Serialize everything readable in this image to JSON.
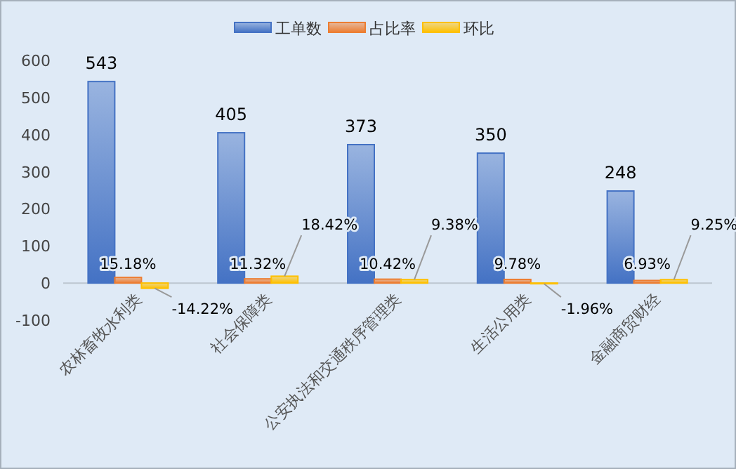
{
  "chart_data": {
    "type": "bar",
    "categories": [
      "农林畜牧水利类",
      "社会保障类",
      "公安执法和交通秩序管理类",
      "生活公用类",
      "金融商贸财经"
    ],
    "series": [
      {
        "name": "工单数",
        "color": "#4472c4",
        "values": [
          543,
          405,
          373,
          350,
          248
        ]
      },
      {
        "name": "占比率",
        "color": "#ed7d31",
        "values": [
          15.18,
          11.32,
          10.42,
          9.78,
          6.93
        ],
        "value_labels": [
          "15.18%",
          "11.32%",
          "10.42%",
          "9.78%",
          "6.93%"
        ]
      },
      {
        "name": "环比",
        "color": "#ffc000",
        "values": [
          -14.22,
          18.42,
          9.38,
          -1.96,
          9.25
        ],
        "value_labels": [
          "-14.22%",
          "18.42%",
          "9.38%",
          "-1.96%",
          "9.25%"
        ]
      }
    ],
    "ylim": [
      -100,
      600
    ],
    "yticks": [
      -100,
      0,
      100,
      200,
      300,
      400,
      500,
      600
    ],
    "data_labels": true,
    "legend": "top",
    "grid": false
  }
}
